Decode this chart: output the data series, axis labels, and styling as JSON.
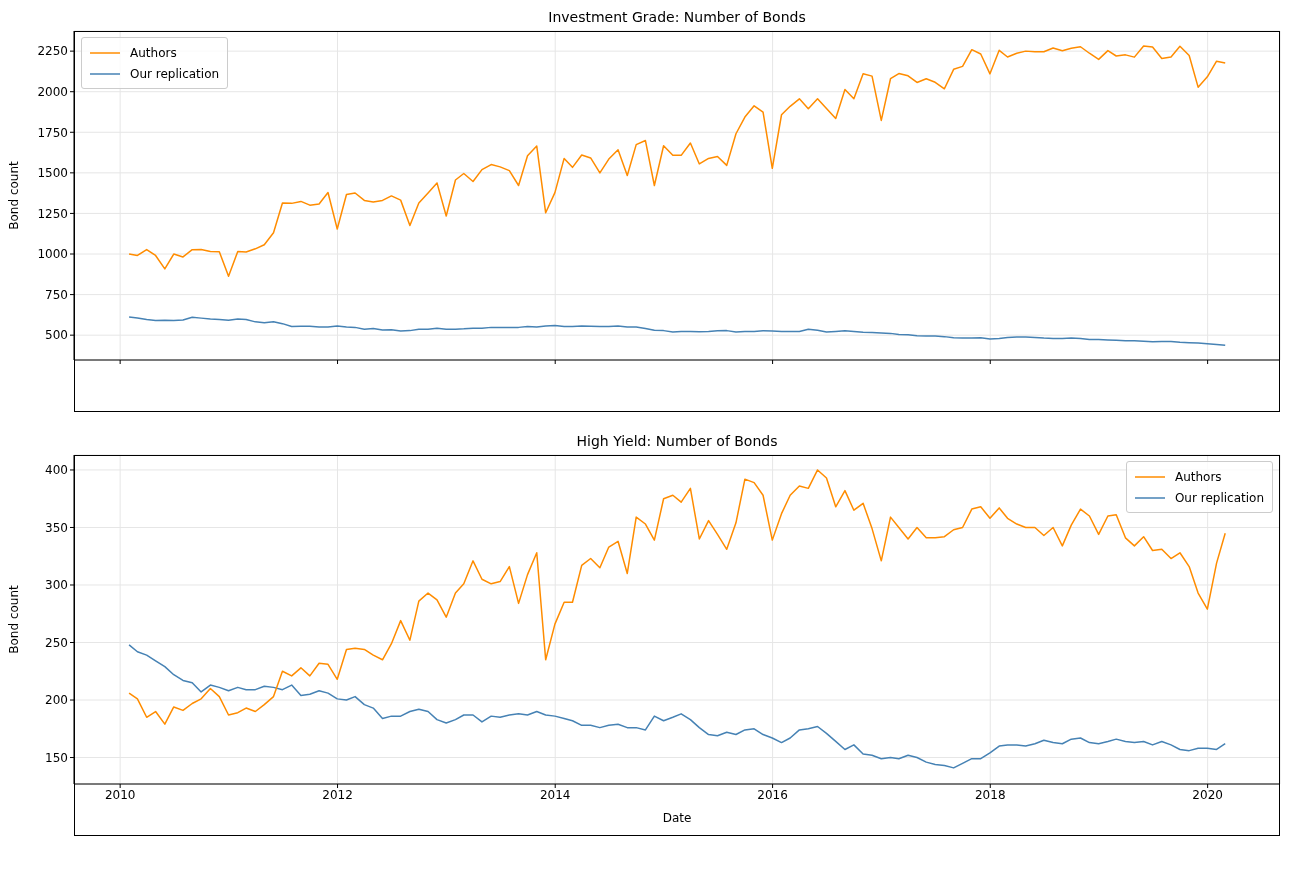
{
  "chart_data": [
    {
      "type": "line",
      "title": "Investment Grade: Number of Bonds",
      "ylabel": "Bond count",
      "x": [
        "2010-01-31",
        "2010-02-28",
        "2010-03-31",
        "2010-04-30",
        "2010-05-31",
        "2010-06-30",
        "2010-07-31",
        "2010-08-31",
        "2010-09-30",
        "2010-10-31",
        "2010-11-30",
        "2010-12-31",
        "2011-01-31",
        "2011-02-28",
        "2011-03-31",
        "2011-04-30",
        "2011-05-31",
        "2011-06-30",
        "2011-07-31",
        "2011-08-31",
        "2011-09-30",
        "2011-10-31",
        "2011-11-30",
        "2011-12-31",
        "2012-01-31",
        "2012-02-29",
        "2012-03-31",
        "2012-04-30",
        "2012-05-31",
        "2012-06-30",
        "2012-07-31",
        "2012-08-31",
        "2012-09-30",
        "2012-10-31",
        "2012-11-30",
        "2012-12-31",
        "2013-01-31",
        "2013-02-28",
        "2013-03-31",
        "2013-04-30",
        "2013-05-31",
        "2013-06-30",
        "2013-07-31",
        "2013-08-31",
        "2013-09-30",
        "2013-10-31",
        "2013-11-30",
        "2013-12-31",
        "2014-01-31",
        "2014-02-28",
        "2014-03-31",
        "2014-04-30",
        "2014-05-31",
        "2014-06-30",
        "2014-07-31",
        "2014-08-31",
        "2014-09-30",
        "2014-10-31",
        "2014-11-30",
        "2014-12-31",
        "2015-01-31",
        "2015-02-28",
        "2015-03-31",
        "2015-04-30",
        "2015-05-31",
        "2015-06-30",
        "2015-07-31",
        "2015-08-31",
        "2015-09-30",
        "2015-10-31",
        "2015-11-30",
        "2015-12-31",
        "2016-01-31",
        "2016-02-29",
        "2016-03-31",
        "2016-04-30",
        "2016-05-31",
        "2016-06-30",
        "2016-07-31",
        "2016-08-31",
        "2016-09-30",
        "2016-10-31",
        "2016-11-30",
        "2016-12-31",
        "2017-01-31",
        "2017-02-28",
        "2017-03-31",
        "2017-04-30",
        "2017-05-31",
        "2017-06-30",
        "2017-07-31",
        "2017-08-31",
        "2017-09-30",
        "2017-10-31",
        "2017-11-30",
        "2017-12-31",
        "2018-01-31",
        "2018-02-28",
        "2018-03-31",
        "2018-04-30",
        "2018-05-31",
        "2018-06-30",
        "2018-07-31",
        "2018-08-31",
        "2018-09-30",
        "2018-10-31",
        "2018-11-30",
        "2018-12-31",
        "2019-01-31",
        "2019-02-28",
        "2019-03-31",
        "2019-04-30",
        "2019-05-31",
        "2019-06-30",
        "2019-07-31",
        "2019-08-31",
        "2019-09-30",
        "2019-10-31",
        "2019-11-30",
        "2019-12-31",
        "2020-01-31",
        "2020-02-29"
      ],
      "series": [
        {
          "name": "Our replication",
          "color": "#4682b4",
          "values": [
            612,
            606,
            596,
            590,
            592,
            590,
            594,
            610,
            605,
            599,
            596,
            592,
            599,
            596,
            582,
            576,
            583,
            571,
            553,
            555,
            555,
            550,
            551,
            557,
            550,
            548,
            537,
            541,
            532,
            534,
            525,
            528,
            537,
            537,
            543,
            537,
            537,
            539,
            543,
            543,
            548,
            548,
            548,
            548,
            553,
            550,
            557,
            559,
            553,
            553,
            557,
            555,
            553,
            553,
            557,
            551,
            550,
            541,
            530,
            528,
            520,
            523,
            523,
            521,
            523,
            527,
            528,
            520,
            523,
            523,
            527,
            525,
            523,
            523,
            523,
            537,
            530,
            520,
            523,
            527,
            523,
            518,
            516,
            514,
            511,
            504,
            502,
            497,
            495,
            495,
            491,
            484,
            482,
            482,
            484,
            477,
            480,
            486,
            488,
            488,
            486,
            482,
            480,
            480,
            482,
            479,
            473,
            473,
            470,
            468,
            466,
            466,
            463,
            459,
            461,
            461,
            456,
            454,
            452,
            447,
            443,
            438
          ]
        },
        {
          "name": "Authors",
          "color": "#ff8c00",
          "values": [
            1000,
            991,
            1027,
            991,
            908,
            1000,
            982,
            1027,
            1028,
            1016,
            1014,
            863,
            1016,
            1012,
            1032,
            1057,
            1131,
            1314,
            1312,
            1324,
            1301,
            1308,
            1379,
            1154,
            1367,
            1376,
            1330,
            1321,
            1330,
            1358,
            1332,
            1176,
            1314,
            1376,
            1438,
            1234,
            1456,
            1496,
            1447,
            1520,
            1551,
            1537,
            1514,
            1422,
            1605,
            1665,
            1254,
            1378,
            1589,
            1534,
            1610,
            1592,
            1500,
            1585,
            1642,
            1484,
            1674,
            1699,
            1422,
            1667,
            1608,
            1608,
            1684,
            1555,
            1589,
            1601,
            1546,
            1741,
            1844,
            1913,
            1874,
            1528,
            1858,
            1910,
            1956,
            1895,
            1957,
            1897,
            1835,
            2014,
            1957,
            2110,
            2096,
            1823,
            2080,
            2112,
            2098,
            2057,
            2080,
            2058,
            2018,
            2138,
            2156,
            2259,
            2232,
            2110,
            2255,
            2214,
            2237,
            2250,
            2246,
            2246,
            2269,
            2252,
            2268,
            2277,
            2237,
            2199,
            2253,
            2220,
            2227,
            2213,
            2282,
            2275,
            2204,
            2214,
            2280,
            2223,
            2028,
            2092,
            2188,
            2177
          ]
        }
      ],
      "xlim": [
        "2009-07-30",
        "2020-08-31"
      ],
      "xticks": [
        "2010",
        "2012",
        "2014",
        "2016",
        "2018",
        "2020"
      ],
      "ylim": [
        347,
        2374
      ],
      "yticks": [
        500,
        750,
        1000,
        1250,
        1500,
        1750,
        2000,
        2250
      ],
      "tick_labels": "y",
      "grid": true,
      "legend": "top left"
    },
    {
      "type": "line",
      "title": "High Yield: Number of Bonds",
      "xlabel": "Date",
      "ylabel": "Bond count",
      "x": [
        "2010-01-31",
        "2010-02-28",
        "2010-03-31",
        "2010-04-30",
        "2010-05-31",
        "2010-06-30",
        "2010-07-31",
        "2010-08-31",
        "2010-09-30",
        "2010-10-31",
        "2010-11-30",
        "2010-12-31",
        "2011-01-31",
        "2011-02-28",
        "2011-03-31",
        "2011-04-30",
        "2011-05-31",
        "2011-06-30",
        "2011-07-31",
        "2011-08-31",
        "2011-09-30",
        "2011-10-31",
        "2011-11-30",
        "2011-12-31",
        "2012-01-31",
        "2012-02-29",
        "2012-03-31",
        "2012-04-30",
        "2012-05-31",
        "2012-06-30",
        "2012-07-31",
        "2012-08-31",
        "2012-09-30",
        "2012-10-31",
        "2012-11-30",
        "2012-12-31",
        "2013-01-31",
        "2013-02-28",
        "2013-03-31",
        "2013-04-30",
        "2013-05-31",
        "2013-06-30",
        "2013-07-31",
        "2013-08-31",
        "2013-09-30",
        "2013-10-31",
        "2013-11-30",
        "2013-12-31",
        "2014-01-31",
        "2014-02-28",
        "2014-03-31",
        "2014-04-30",
        "2014-05-31",
        "2014-06-30",
        "2014-07-31",
        "2014-08-31",
        "2014-09-30",
        "2014-10-31",
        "2014-11-30",
        "2014-12-31",
        "2015-01-31",
        "2015-02-28",
        "2015-03-31",
        "2015-04-30",
        "2015-05-31",
        "2015-06-30",
        "2015-07-31",
        "2015-08-31",
        "2015-09-30",
        "2015-10-31",
        "2015-11-30",
        "2015-12-31",
        "2016-01-31",
        "2016-02-29",
        "2016-03-31",
        "2016-04-30",
        "2016-05-31",
        "2016-06-30",
        "2016-07-31",
        "2016-08-31",
        "2016-09-30",
        "2016-10-31",
        "2016-11-30",
        "2016-12-31",
        "2017-01-31",
        "2017-02-28",
        "2017-03-31",
        "2017-04-30",
        "2017-05-31",
        "2017-06-30",
        "2017-07-31",
        "2017-08-31",
        "2017-09-30",
        "2017-10-31",
        "2017-11-30",
        "2017-12-31",
        "2018-01-31",
        "2018-02-28",
        "2018-03-31",
        "2018-04-30",
        "2018-05-31",
        "2018-06-30",
        "2018-07-31",
        "2018-08-31",
        "2018-09-30",
        "2018-10-31",
        "2018-11-30",
        "2018-12-31",
        "2019-01-31",
        "2019-02-28",
        "2019-03-31",
        "2019-04-30",
        "2019-05-31",
        "2019-06-30",
        "2019-07-31",
        "2019-08-31",
        "2019-09-30",
        "2019-10-31",
        "2019-11-30",
        "2019-12-31",
        "2020-01-31",
        "2020-02-29"
      ],
      "series": [
        {
          "name": "Our replication",
          "color": "#4682b4",
          "values": [
            248,
            242,
            239,
            234,
            229,
            222,
            217,
            215,
            207,
            213,
            211,
            208,
            211,
            209,
            209,
            212,
            211,
            209,
            213,
            204,
            205,
            208,
            206,
            201,
            200,
            203,
            196,
            193,
            184,
            186,
            186,
            190,
            192,
            190,
            183,
            180,
            183,
            187,
            187,
            181,
            186,
            185,
            187,
            188,
            187,
            190,
            187,
            186,
            184,
            182,
            178,
            178,
            176,
            178,
            179,
            176,
            176,
            174,
            186,
            182,
            185,
            188,
            183,
            176,
            170,
            169,
            172,
            170,
            174,
            175,
            170,
            167,
            163,
            167,
            174,
            175,
            177,
            171,
            164,
            157,
            161,
            153,
            152,
            149,
            150,
            149,
            152,
            150,
            146,
            144,
            143,
            141,
            145,
            149,
            149,
            154,
            160,
            161,
            161,
            160,
            162,
            165,
            163,
            162,
            166,
            167,
            163,
            162,
            164,
            166,
            164,
            163,
            164,
            161,
            164,
            161,
            157,
            156,
            158,
            158,
            157,
            162
          ]
        },
        {
          "name": "Authors",
          "color": "#ff8c00",
          "values": [
            206,
            201,
            185,
            190,
            179,
            194,
            191,
            197,
            201,
            210,
            203,
            187,
            189,
            193,
            190,
            196,
            203,
            225,
            221,
            228,
            221,
            232,
            231,
            218,
            244,
            245,
            244,
            239,
            235,
            249,
            269,
            252,
            286,
            293,
            287,
            272,
            293,
            301,
            321,
            305,
            301,
            303,
            316,
            284,
            309,
            328,
            235,
            266,
            285,
            285,
            317,
            323,
            315,
            333,
            338,
            310,
            359,
            353,
            339,
            375,
            378,
            372,
            384,
            340,
            356,
            344,
            331,
            354,
            392,
            389,
            378,
            339,
            362,
            378,
            386,
            384,
            400,
            393,
            368,
            382,
            365,
            371,
            349,
            321,
            359,
            350,
            340,
            350,
            341,
            341,
            342,
            348,
            350,
            366,
            368,
            358,
            367,
            358,
            353,
            350,
            350,
            343,
            350,
            334,
            352,
            366,
            360,
            344,
            360,
            361,
            341,
            334,
            342,
            330,
            331,
            323,
            328,
            316,
            293,
            279,
            319,
            345
          ]
        }
      ],
      "xlim": [
        "2009-07-30",
        "2020-08-31"
      ],
      "xticks": [
        "2010",
        "2012",
        "2014",
        "2016",
        "2018",
        "2020"
      ],
      "ylim": [
        127,
        413
      ],
      "yticks": [
        150,
        200,
        250,
        300,
        350,
        400
      ],
      "grid": true,
      "legend": "top right"
    }
  ]
}
